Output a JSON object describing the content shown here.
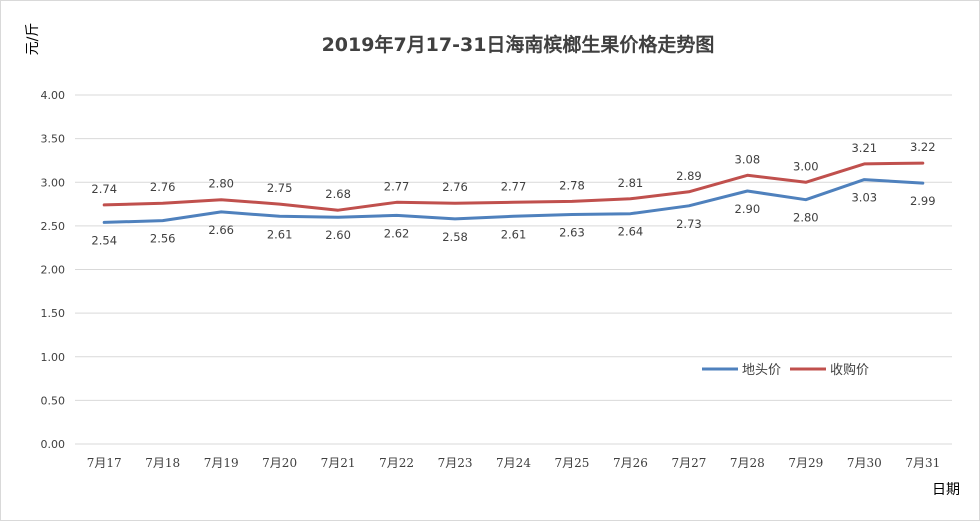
{
  "chart_data": {
    "type": "line",
    "title": "2019年7月17-31日海南槟榔生果价格走势图",
    "xlabel": "日期",
    "ylabel": "元/斤",
    "categories": [
      "7月17",
      "7月18",
      "7月19",
      "7月20",
      "7月21",
      "7月22",
      "7月23",
      "7月24",
      "7月25",
      "7月26",
      "7月27",
      "7月28",
      "7月29",
      "7月30",
      "7月31"
    ],
    "ylim": [
      0,
      4
    ],
    "yticks": [
      "0.00",
      "0.50",
      "1.00",
      "1.50",
      "2.00",
      "2.50",
      "3.00",
      "3.50",
      "4.00"
    ],
    "grid": true,
    "legend_position": "right",
    "series": [
      {
        "name": "地头价",
        "color": "#4f81bd",
        "label_position": "below",
        "values": [
          2.54,
          2.56,
          2.66,
          2.61,
          2.6,
          2.62,
          2.58,
          2.61,
          2.63,
          2.64,
          2.73,
          2.9,
          2.8,
          3.03,
          2.99
        ]
      },
      {
        "name": "收购价",
        "color": "#c0504d",
        "label_position": "above",
        "values": [
          2.74,
          2.76,
          2.8,
          2.75,
          2.68,
          2.77,
          2.76,
          2.77,
          2.78,
          2.81,
          2.89,
          3.08,
          3.0,
          3.21,
          3.22
        ]
      }
    ]
  }
}
